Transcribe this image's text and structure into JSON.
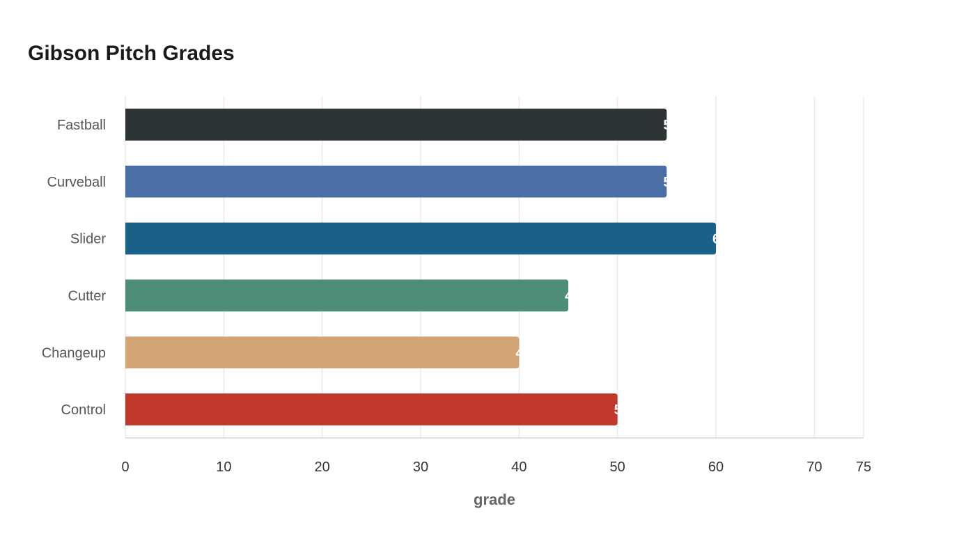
{
  "chart_data": {
    "type": "bar",
    "orientation": "horizontal",
    "title": "Gibson Pitch Grades",
    "xlabel": "grade",
    "ylabel": "",
    "categories": [
      "Fastball",
      "Curveball",
      "Slider",
      "Cutter",
      "Changeup",
      "Control"
    ],
    "values": [
      55,
      55,
      60,
      45,
      40,
      50
    ],
    "colors": [
      "#2d3436",
      "#4a6fa5",
      "#1a6188",
      "#4e8c7a",
      "#d4a574",
      "#c0392b"
    ],
    "xlim": [
      0,
      75
    ],
    "xticks": [
      0,
      10,
      20,
      30,
      40,
      50,
      60,
      70,
      75
    ],
    "grid": true,
    "legend": "none"
  }
}
